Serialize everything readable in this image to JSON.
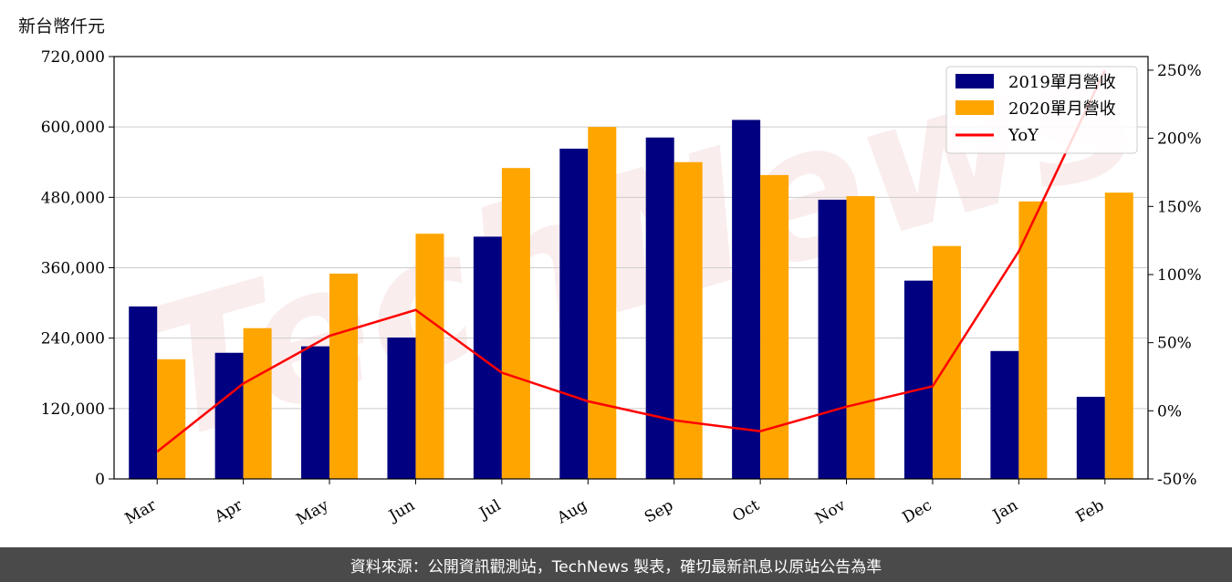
{
  "unit_label": "新台幣仟元",
  "footer_text": "資料來源：公開資訊觀測站，TechNews 製表，確切最新訊息以原站公告為準",
  "watermark_text": "TechNews",
  "colors": {
    "series_2019": "#000080",
    "series_2020": "#FFA500",
    "yoy_line": "#FF0000",
    "grid": "#cccccc",
    "footer_bg": "#4a4a4a"
  },
  "chart_data": {
    "type": "bar",
    "categories": [
      "Mar",
      "Apr",
      "May",
      "Jun",
      "Jul",
      "Aug",
      "Sep",
      "Oct",
      "Nov",
      "Dec",
      "Jan",
      "Feb"
    ],
    "series": [
      {
        "name": "2019單月營收",
        "values": [
          294000,
          215000,
          226000,
          241000,
          413000,
          563000,
          582000,
          612000,
          476000,
          338000,
          218000,
          140000
        ]
      },
      {
        "name": "2020單月營收",
        "values": [
          204000,
          257000,
          350000,
          418000,
          530000,
          600000,
          540000,
          518000,
          482000,
          397000,
          473000,
          488000
        ]
      }
    ],
    "line_series": {
      "name": "YoY",
      "axis": "right",
      "values": [
        -30,
        20,
        55,
        74,
        28,
        7,
        -7,
        -15,
        3,
        18,
        117,
        250
      ]
    },
    "ylim": [
      0,
      720000
    ],
    "yticks": [
      "0",
      "120,000",
      "240,000",
      "360,000",
      "480,000",
      "600,000",
      "720,000"
    ],
    "ytick_values": [
      0,
      120000,
      240000,
      360000,
      480000,
      600000,
      720000
    ],
    "y2lim": [
      -50,
      260
    ],
    "y2ticks": [
      "-50%",
      "0%",
      "50%",
      "100%",
      "150%",
      "200%",
      "250%"
    ],
    "y2tick_values": [
      -50,
      0,
      50,
      100,
      150,
      200,
      250
    ],
    "grid": "horizontal",
    "legend_position": "top-right"
  }
}
